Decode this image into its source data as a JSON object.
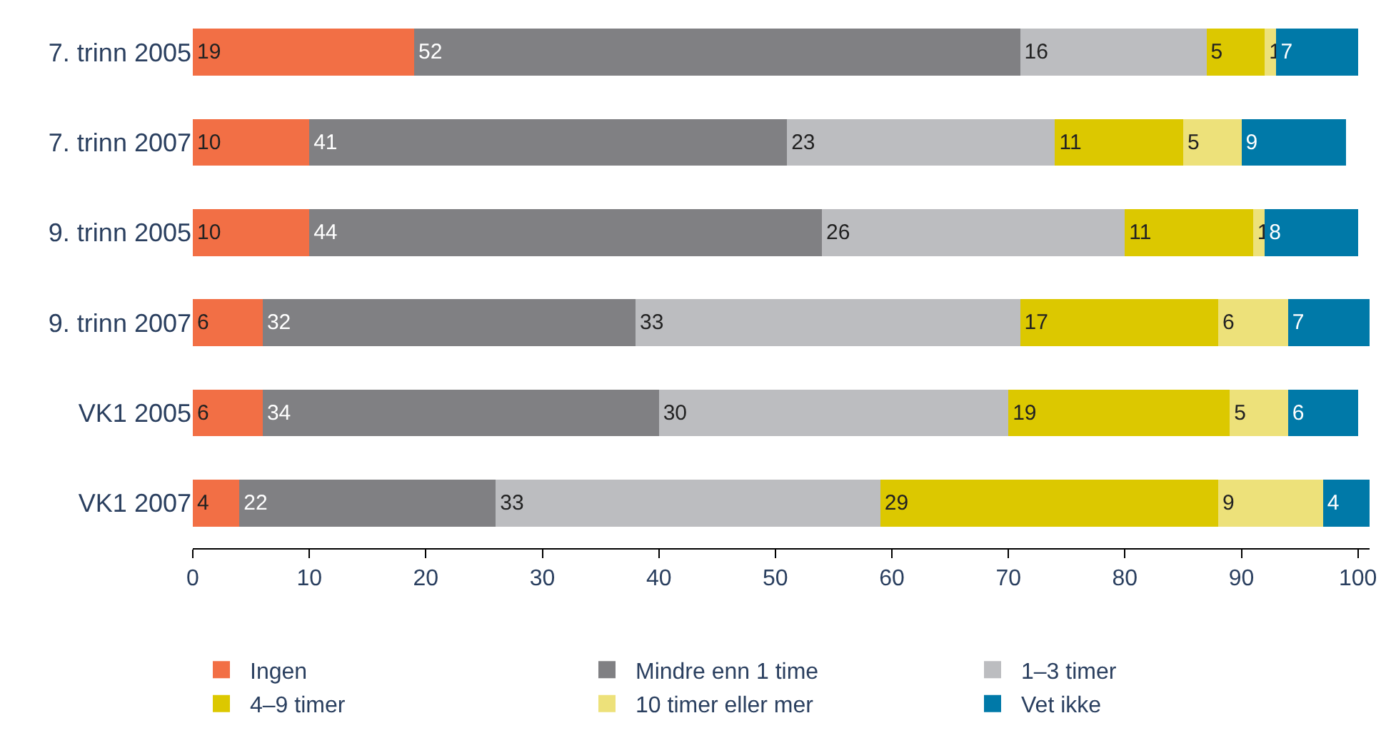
{
  "chart_data": {
    "type": "bar",
    "orientation": "horizontal",
    "stacked": true,
    "data_labels": true,
    "categories": [
      "7. trinn 2005",
      "7. trinn 2007",
      "9. trinn 2005",
      "9. trinn 2007",
      "VK1 2005",
      "VK1 2007"
    ],
    "series": [
      {
        "name": "Ingen",
        "color": "#f26f45",
        "values": [
          19,
          10,
          10,
          6,
          6,
          4
        ]
      },
      {
        "name": "Mindre enn 1 time",
        "color": "#808083",
        "values": [
          52,
          41,
          44,
          32,
          34,
          22
        ]
      },
      {
        "name": "1–3 timer",
        "color": "#bcbdc0",
        "values": [
          16,
          23,
          26,
          33,
          30,
          33
        ]
      },
      {
        "name": "4–9 timer",
        "color": "#dcc800",
        "values": [
          5,
          11,
          11,
          17,
          19,
          29
        ]
      },
      {
        "name": "10 timer eller mer",
        "color": "#ede17a",
        "values": [
          1,
          5,
          1,
          6,
          5,
          9
        ]
      },
      {
        "name": "Vet ikke",
        "color": "#0079a8",
        "values": [
          7,
          9,
          8,
          7,
          6,
          4
        ]
      }
    ],
    "xlim": [
      0,
      101
    ],
    "xticks": [
      0,
      10,
      20,
      30,
      40,
      50,
      60,
      70,
      80,
      90,
      100
    ],
    "legend": "bottom"
  }
}
